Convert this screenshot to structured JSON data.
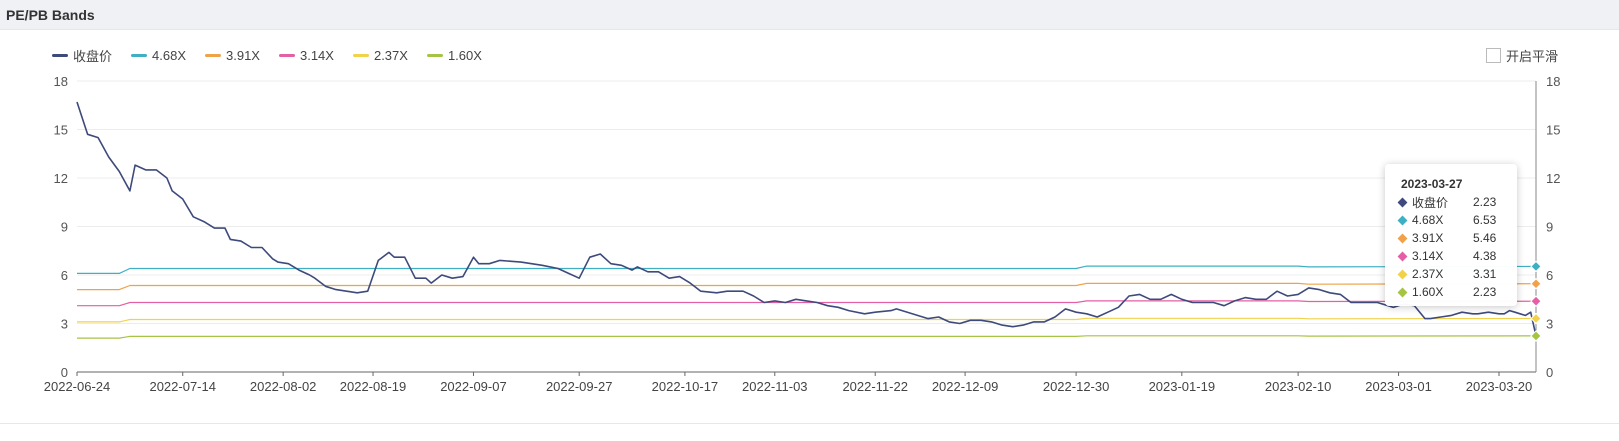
{
  "header": {
    "title": "PE/PB Bands"
  },
  "smooth_toggle": {
    "label": "开启平滑",
    "checked": false
  },
  "legend": [
    {
      "label": "收盘价",
      "color": "#3d4a7b"
    },
    {
      "label": "4.68X",
      "color": "#3fb0c4"
    },
    {
      "label": "3.91X",
      "color": "#f0a24a"
    },
    {
      "label": "3.14X",
      "color": "#e45fa4"
    },
    {
      "label": "2.37X",
      "color": "#f1d24a"
    },
    {
      "label": "1.60X",
      "color": "#a6c444"
    }
  ],
  "tooltip": {
    "date": "2023-03-27",
    "rows": [
      {
        "name": "收盘价",
        "value": "2.23",
        "color": "#3d4a7b"
      },
      {
        "name": "4.68X",
        "value": "6.53",
        "color": "#3fb0c4"
      },
      {
        "name": "3.91X",
        "value": "5.46",
        "color": "#f0a24a"
      },
      {
        "name": "3.14X",
        "value": "4.38",
        "color": "#e45fa4"
      },
      {
        "name": "2.37X",
        "value": "3.31",
        "color": "#f1d24a"
      },
      {
        "name": "1.60X",
        "value": "2.23",
        "color": "#a6c444"
      }
    ]
  },
  "chart_data": {
    "type": "line",
    "title": "PE/PB Bands",
    "xlabel": "",
    "ylabel": "",
    "ylim": [
      0,
      18
    ],
    "yticks": [
      0,
      3,
      6,
      9,
      12,
      15,
      18
    ],
    "xlim": [
      "2022-06-24",
      "2023-03-27"
    ],
    "x_tick_labels": [
      "2022-06-24",
      "2022-07-14",
      "2022-08-02",
      "2022-08-19",
      "2022-09-07",
      "2022-09-27",
      "2022-10-17",
      "2022-11-03",
      "2022-11-22",
      "2022-12-09",
      "2022-12-30",
      "2023-01-19",
      "2023-02-10",
      "2023-03-01",
      "2023-03-20"
    ],
    "grid": "horizontal",
    "legend_position": "top-left",
    "series": [
      {
        "name": "收盘价",
        "color": "#3d4a7b",
        "points": [
          [
            "2022-06-24",
            16.7
          ],
          [
            "2022-06-26",
            14.7
          ],
          [
            "2022-06-28",
            14.5
          ],
          [
            "2022-06-30",
            13.3
          ],
          [
            "2022-07-02",
            12.4
          ],
          [
            "2022-07-04",
            11.2
          ],
          [
            "2022-07-05",
            12.8
          ],
          [
            "2022-07-07",
            12.5
          ],
          [
            "2022-07-09",
            12.5
          ],
          [
            "2022-07-11",
            12.0
          ],
          [
            "2022-07-12",
            11.2
          ],
          [
            "2022-07-14",
            10.7
          ],
          [
            "2022-07-16",
            9.6
          ],
          [
            "2022-07-18",
            9.3
          ],
          [
            "2022-07-20",
            8.9
          ],
          [
            "2022-07-22",
            8.9
          ],
          [
            "2022-07-23",
            8.2
          ],
          [
            "2022-07-25",
            8.1
          ],
          [
            "2022-07-27",
            7.7
          ],
          [
            "2022-07-29",
            7.7
          ],
          [
            "2022-07-31",
            7.0
          ],
          [
            "2022-08-01",
            6.8
          ],
          [
            "2022-08-03",
            6.7
          ],
          [
            "2022-08-05",
            6.3
          ],
          [
            "2022-08-07",
            6.0
          ],
          [
            "2022-08-08",
            5.8
          ],
          [
            "2022-08-10",
            5.3
          ],
          [
            "2022-08-12",
            5.1
          ],
          [
            "2022-08-14",
            5.0
          ],
          [
            "2022-08-16",
            4.9
          ],
          [
            "2022-08-18",
            5.0
          ],
          [
            "2022-08-20",
            6.9
          ],
          [
            "2022-08-22",
            7.4
          ],
          [
            "2022-08-23",
            7.1
          ],
          [
            "2022-08-25",
            7.1
          ],
          [
            "2022-08-27",
            5.8
          ],
          [
            "2022-08-29",
            5.8
          ],
          [
            "2022-08-30",
            5.5
          ],
          [
            "2022-09-01",
            6.0
          ],
          [
            "2022-09-03",
            5.8
          ],
          [
            "2022-09-05",
            5.9
          ],
          [
            "2022-09-07",
            7.1
          ],
          [
            "2022-09-08",
            6.7
          ],
          [
            "2022-09-10",
            6.7
          ],
          [
            "2022-09-12",
            6.9
          ],
          [
            "2022-09-16",
            6.8
          ],
          [
            "2022-09-20",
            6.6
          ],
          [
            "2022-09-23",
            6.4
          ],
          [
            "2022-09-25",
            6.1
          ],
          [
            "2022-09-27",
            5.8
          ],
          [
            "2022-09-29",
            7.1
          ],
          [
            "2022-10-01",
            7.3
          ],
          [
            "2022-10-03",
            6.7
          ],
          [
            "2022-10-05",
            6.6
          ],
          [
            "2022-10-07",
            6.3
          ],
          [
            "2022-10-08",
            6.5
          ],
          [
            "2022-10-10",
            6.2
          ],
          [
            "2022-10-12",
            6.2
          ],
          [
            "2022-10-14",
            5.8
          ],
          [
            "2022-10-16",
            5.9
          ],
          [
            "2022-10-18",
            5.5
          ],
          [
            "2022-10-20",
            5.0
          ],
          [
            "2022-10-23",
            4.9
          ],
          [
            "2022-10-25",
            5.0
          ],
          [
            "2022-10-28",
            5.0
          ],
          [
            "2022-10-30",
            4.7
          ],
          [
            "2022-11-01",
            4.3
          ],
          [
            "2022-11-03",
            4.4
          ],
          [
            "2022-11-05",
            4.3
          ],
          [
            "2022-11-07",
            4.5
          ],
          [
            "2022-11-09",
            4.4
          ],
          [
            "2022-11-11",
            4.3
          ],
          [
            "2022-11-13",
            4.1
          ],
          [
            "2022-11-15",
            4.0
          ],
          [
            "2022-11-17",
            3.8
          ],
          [
            "2022-11-20",
            3.6
          ],
          [
            "2022-11-22",
            3.7
          ],
          [
            "2022-11-25",
            3.8
          ],
          [
            "2022-11-26",
            3.9
          ],
          [
            "2022-11-30",
            3.5
          ],
          [
            "2022-12-02",
            3.3
          ],
          [
            "2022-12-04",
            3.4
          ],
          [
            "2022-12-06",
            3.1
          ],
          [
            "2022-12-08",
            3.0
          ],
          [
            "2022-12-10",
            3.2
          ],
          [
            "2022-12-12",
            3.2
          ],
          [
            "2022-12-14",
            3.1
          ],
          [
            "2022-12-16",
            2.9
          ],
          [
            "2022-12-18",
            2.8
          ],
          [
            "2022-12-20",
            2.9
          ],
          [
            "2022-12-22",
            3.1
          ],
          [
            "2022-12-24",
            3.1
          ],
          [
            "2022-12-26",
            3.4
          ],
          [
            "2022-12-28",
            3.9
          ],
          [
            "2022-12-30",
            3.7
          ],
          [
            "2023-01-01",
            3.6
          ],
          [
            "2023-01-03",
            3.4
          ],
          [
            "2023-01-05",
            3.7
          ],
          [
            "2023-01-07",
            4.0
          ],
          [
            "2023-01-09",
            4.7
          ],
          [
            "2023-01-11",
            4.8
          ],
          [
            "2023-01-13",
            4.5
          ],
          [
            "2023-01-15",
            4.5
          ],
          [
            "2023-01-17",
            4.8
          ],
          [
            "2023-01-19",
            4.5
          ],
          [
            "2023-01-21",
            4.3
          ],
          [
            "2023-01-23",
            4.3
          ],
          [
            "2023-01-25",
            4.3
          ],
          [
            "2023-01-27",
            4.1
          ],
          [
            "2023-01-29",
            4.4
          ],
          [
            "2023-01-31",
            4.6
          ],
          [
            "2023-02-02",
            4.5
          ],
          [
            "2023-02-04",
            4.5
          ],
          [
            "2023-02-06",
            5.0
          ],
          [
            "2023-02-08",
            4.7
          ],
          [
            "2023-02-10",
            4.8
          ],
          [
            "2023-02-12",
            5.2
          ],
          [
            "2023-02-14",
            5.1
          ],
          [
            "2023-02-16",
            4.9
          ],
          [
            "2023-02-18",
            4.8
          ],
          [
            "2023-02-20",
            4.3
          ],
          [
            "2023-02-22",
            4.3
          ],
          [
            "2023-02-25",
            4.3
          ],
          [
            "2023-02-27",
            4.1
          ],
          [
            "2023-02-28",
            4.0
          ],
          [
            "2023-03-02",
            4.2
          ],
          [
            "2023-03-04",
            4.1
          ],
          [
            "2023-03-06",
            3.3
          ],
          [
            "2023-03-07",
            3.3
          ],
          [
            "2023-03-09",
            3.4
          ],
          [
            "2023-03-11",
            3.5
          ],
          [
            "2023-03-13",
            3.7
          ],
          [
            "2023-03-15",
            3.6
          ],
          [
            "2023-03-16",
            3.6
          ],
          [
            "2023-03-18",
            3.7
          ],
          [
            "2023-03-20",
            3.6
          ],
          [
            "2023-03-21",
            3.6
          ],
          [
            "2023-03-22",
            3.8
          ],
          [
            "2023-03-23",
            3.7
          ],
          [
            "2023-03-24",
            3.6
          ],
          [
            "2023-03-25",
            3.5
          ],
          [
            "2023-03-26",
            3.7
          ],
          [
            "2023-03-27",
            2.23
          ]
        ]
      },
      {
        "name": "4.68X",
        "color": "#3fb0c4",
        "points": [
          [
            "2022-06-24",
            6.1
          ],
          [
            "2022-07-02",
            6.1
          ],
          [
            "2022-07-04",
            6.4
          ],
          [
            "2022-12-30",
            6.4
          ],
          [
            "2023-01-01",
            6.55
          ],
          [
            "2023-02-10",
            6.55
          ],
          [
            "2023-02-12",
            6.5
          ],
          [
            "2023-03-27",
            6.53
          ]
        ]
      },
      {
        "name": "3.91X",
        "color": "#f0a24a",
        "points": [
          [
            "2022-06-24",
            5.1
          ],
          [
            "2022-07-02",
            5.1
          ],
          [
            "2022-07-04",
            5.35
          ],
          [
            "2022-12-30",
            5.35
          ],
          [
            "2023-01-01",
            5.48
          ],
          [
            "2023-02-10",
            5.48
          ],
          [
            "2023-02-12",
            5.43
          ],
          [
            "2023-03-27",
            5.46
          ]
        ]
      },
      {
        "name": "3.14X",
        "color": "#e45fa4",
        "points": [
          [
            "2022-06-24",
            4.1
          ],
          [
            "2022-07-02",
            4.1
          ],
          [
            "2022-07-04",
            4.3
          ],
          [
            "2022-12-30",
            4.3
          ],
          [
            "2023-01-01",
            4.4
          ],
          [
            "2023-02-10",
            4.4
          ],
          [
            "2023-02-12",
            4.36
          ],
          [
            "2023-03-27",
            4.38
          ]
        ]
      },
      {
        "name": "2.37X",
        "color": "#f1d24a",
        "points": [
          [
            "2022-06-24",
            3.1
          ],
          [
            "2022-07-02",
            3.1
          ],
          [
            "2022-07-04",
            3.25
          ],
          [
            "2022-12-30",
            3.25
          ],
          [
            "2023-01-01",
            3.32
          ],
          [
            "2023-02-10",
            3.32
          ],
          [
            "2023-02-12",
            3.29
          ],
          [
            "2023-03-27",
            3.31
          ]
        ]
      },
      {
        "name": "1.60X",
        "color": "#a6c444",
        "points": [
          [
            "2022-06-24",
            2.1
          ],
          [
            "2022-07-02",
            2.1
          ],
          [
            "2022-07-04",
            2.2
          ],
          [
            "2022-12-30",
            2.2
          ],
          [
            "2023-01-01",
            2.24
          ],
          [
            "2023-02-10",
            2.24
          ],
          [
            "2023-02-12",
            2.22
          ],
          [
            "2023-03-27",
            2.23
          ]
        ]
      }
    ]
  }
}
